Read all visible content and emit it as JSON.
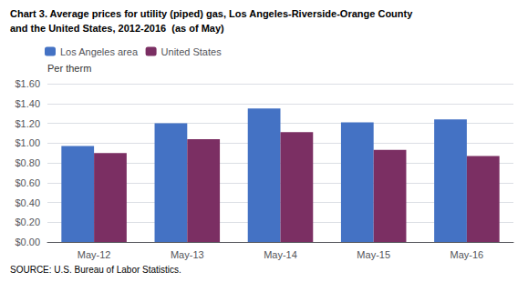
{
  "chart_data": {
    "type": "bar",
    "title": "Chart 3. Average prices for utility (piped) gas, Los Angeles-Riverside-Orange County",
    "subtitle": "and the United States, 2012-2016  (as of May)",
    "ylabel": "Per therm",
    "source": "SOURCE: U.S. Bureau of Labor Statistics.",
    "categories": [
      "May-12",
      "May-13",
      "May-14",
      "May-15",
      "May-16"
    ],
    "series": [
      {
        "name": "Los Angeles area",
        "color": "#4472C4",
        "values": [
          0.97,
          1.2,
          1.35,
          1.21,
          1.24
        ]
      },
      {
        "name": "United States",
        "color": "#7B2F63",
        "values": [
          0.9,
          1.04,
          1.11,
          0.93,
          0.87
        ]
      }
    ],
    "ylim": [
      0.0,
      1.6
    ],
    "yticks": [
      {
        "value": 0.0,
        "label": "$0.00"
      },
      {
        "value": 0.2,
        "label": "$0.20"
      },
      {
        "value": 0.4,
        "label": "$0.40"
      },
      {
        "value": 0.6,
        "label": "$0.60"
      },
      {
        "value": 0.8,
        "label": "$0.80"
      },
      {
        "value": 1.0,
        "label": "$1.00"
      },
      {
        "value": 1.2,
        "label": "$1.20"
      },
      {
        "value": 1.4,
        "label": "$1.40"
      },
      {
        "value": 1.6,
        "label": "$1.60"
      }
    ],
    "grid": true,
    "legend": "upper left"
  }
}
